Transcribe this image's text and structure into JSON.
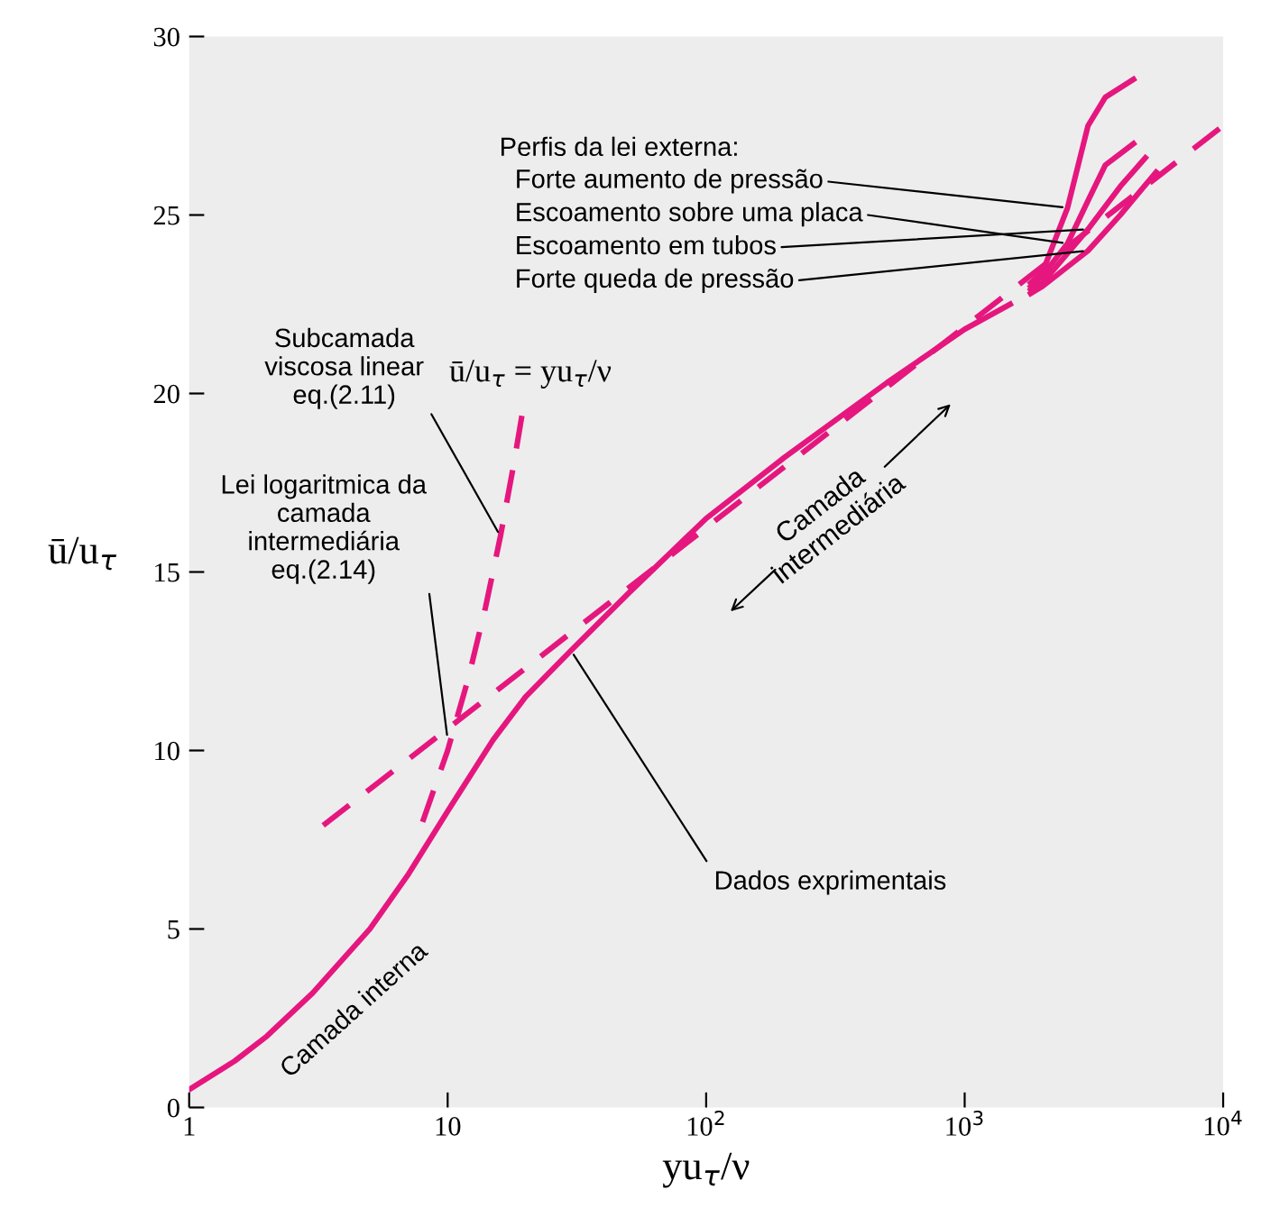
{
  "chart_data": {
    "type": "line",
    "xlabel": "yu$_{τ}$/ν",
    "ylabel": "ū/u$_{τ}$",
    "log": "x",
    "xlim": [
      1,
      10000
    ],
    "ylim": [
      0,
      30
    ],
    "xticks": [
      1,
      10,
      {
        "value": 100,
        "label": "10$^{2}$"
      },
      {
        "value": 1000,
        "label": "10$^{3}$"
      },
      {
        "value": 10000,
        "label": "10$^{4}$"
      }
    ],
    "yticks": [
      0,
      5,
      10,
      15,
      20,
      25,
      30
    ],
    "grid": false,
    "legend": false,
    "marker": "none",
    "series": [
      {
        "color": "#e5177e",
        "line_style": "solid",
        "x": [
          1,
          1.5,
          2,
          3,
          5,
          7,
          10,
          15,
          20,
          30,
          50,
          100,
          200,
          500,
          1000,
          1500
        ],
        "values": [
          0.5,
          1.3,
          2,
          3.2,
          5,
          6.5,
          8.3,
          10.3,
          11.5,
          12.8,
          14.4,
          16.5,
          18.2,
          20.3,
          21.8,
          22.5
        ]
      },
      {
        "name": "Forte aumento de pressão",
        "color": "#e5177e",
        "line_style": "solid",
        "x": [
          1800,
          2000,
          2500,
          3000,
          3500,
          4500
        ],
        "values": [
          23.1,
          23.4,
          25.2,
          27.5,
          28.3,
          28.8
        ]
      },
      {
        "name": "Escoamento sobre uma placa",
        "color": "#e5177e",
        "line_style": "solid",
        "x": [
          1800,
          2000,
          2500,
          3000,
          3500,
          4500
        ],
        "values": [
          23.0,
          23.3,
          24.2,
          25.4,
          26.4,
          27
        ]
      },
      {
        "name": "Escoamento em tubos",
        "color": "#e5177e",
        "line_style": "solid",
        "x": [
          1800,
          2000,
          3000,
          4000,
          5000
        ],
        "values": [
          22.9,
          23.1,
          24.6,
          25.8,
          26.6
        ]
      },
      {
        "name": "Forte queda de pressão",
        "color": "#e5177e",
        "line_style": "solid",
        "x": [
          1800,
          2000,
          3000,
          4000,
          5500
        ],
        "values": [
          22.8,
          23,
          24,
          25,
          26.2
        ]
      },
      {
        "color": "#e5177e",
        "line_style": "dashed",
        "x": [
          8,
          10,
          12,
          14,
          16,
          18,
          19.5
        ],
        "values": [
          8,
          10,
          12,
          14,
          16,
          18,
          19.5
        ]
      },
      {
        "color": "#e5177e",
        "line_style": "dashed",
        "x": [
          3.3,
          10000
        ],
        "values": [
          7.9,
          27.5
        ]
      }
    ],
    "annotations": [
      "ū/u$_{τ}$ = yu$_{τ}$/ν",
      {
        "text": "Subcamada\nviscosa linear\neq.(2.11)",
        "x": 16,
        "y": 16
      },
      {
        "text": "Lei logaritmica da\ncamada\nintermediária\neq.(2.14)",
        "x": 10,
        "y": 10.3
      },
      {
        "text": "Dados exprimentais",
        "x": 30,
        "y": 12.8
      },
      "Perfis da lei externa:",
      "Camada\nintermediária",
      "Camada interna"
    ]
  }
}
